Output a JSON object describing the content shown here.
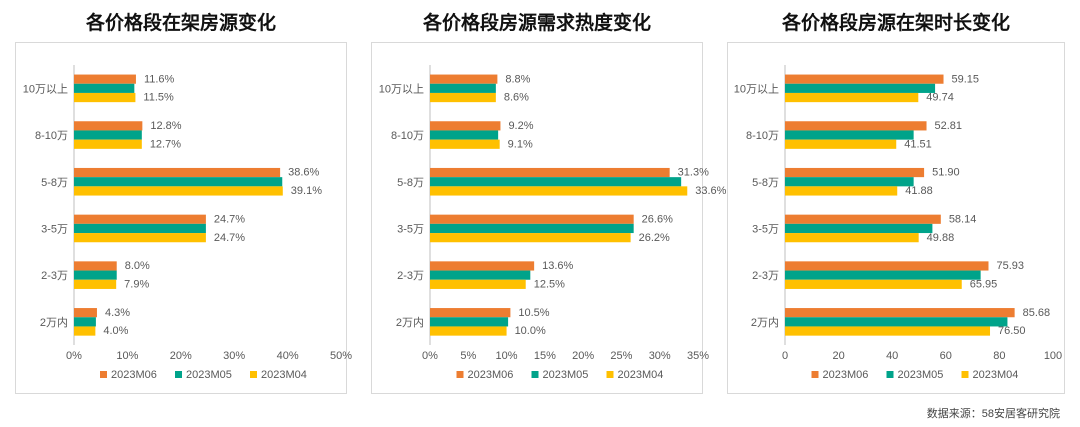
{
  "colors": {
    "2023M06": "#ED7D31",
    "2023M05": "#00A38A",
    "2023M04": "#FFC000"
  },
  "source": "数据来源：58安居客研究院",
  "chart_data": [
    {
      "type": "bar",
      "orientation": "horizontal",
      "title": "各价格段在架房源变化",
      "categories": [
        "10万以上",
        "8-10万",
        "5-8万",
        "3-5万",
        "2-3万",
        "2万内"
      ],
      "xlim": [
        0,
        50
      ],
      "ticks": [
        "0%",
        "10%",
        "20%",
        "30%",
        "40%",
        "50%"
      ],
      "grid": false,
      "legend": "bottom",
      "series": [
        {
          "name": "2023M06",
          "values": [
            11.6,
            12.8,
            38.6,
            24.7,
            8.0,
            4.3
          ],
          "labels": [
            "11.6%",
            "12.8%",
            "38.6%",
            "24.7%",
            "8.0%",
            "4.3%"
          ]
        },
        {
          "name": "2023M05",
          "values": [
            11.3,
            12.7,
            39.0,
            24.7,
            8.0,
            4.1
          ],
          "labels": []
        },
        {
          "name": "2023M04",
          "values": [
            11.5,
            12.7,
            39.1,
            24.7,
            7.9,
            4.0
          ],
          "labels": [
            "11.5%",
            "12.7%",
            "39.1%",
            "24.7%",
            "7.9%",
            "4.0%"
          ]
        }
      ]
    },
    {
      "type": "bar",
      "orientation": "horizontal",
      "title": "各价格段房源需求热度变化",
      "categories": [
        "10万以上",
        "8-10万",
        "5-8万",
        "3-5万",
        "2-3万",
        "2万内"
      ],
      "xlim": [
        0,
        35
      ],
      "ticks": [
        "0%",
        "5%",
        "10%",
        "15%",
        "20%",
        "25%",
        "30%",
        "35%"
      ],
      "grid": false,
      "legend": "bottom",
      "series": [
        {
          "name": "2023M06",
          "values": [
            8.8,
            9.2,
            31.3,
            26.6,
            13.6,
            10.5
          ],
          "labels": [
            "8.8%",
            "9.2%",
            "31.3%",
            "26.6%",
            "13.6%",
            "10.5%"
          ]
        },
        {
          "name": "2023M05",
          "values": [
            8.6,
            8.9,
            32.8,
            26.6,
            13.1,
            10.2
          ],
          "labels": []
        },
        {
          "name": "2023M04",
          "values": [
            8.6,
            9.1,
            33.6,
            26.2,
            12.5,
            10.0
          ],
          "labels": [
            "8.6%",
            "9.1%",
            "33.6%",
            "26.2%",
            "12.5%",
            "10.0%"
          ]
        }
      ]
    },
    {
      "type": "bar",
      "orientation": "horizontal",
      "title": "各价格段房源在架时长变化",
      "categories": [
        "10万以上",
        "8-10万",
        "5-8万",
        "3-5万",
        "2-3万",
        "2万内"
      ],
      "xlim": [
        0,
        100
      ],
      "ticks": [
        "0",
        "20",
        "40",
        "60",
        "80",
        "100"
      ],
      "grid": false,
      "legend": "bottom",
      "series": [
        {
          "name": "2023M06",
          "values": [
            59.15,
            52.81,
            51.9,
            58.14,
            75.93,
            85.68
          ],
          "labels": [
            "59.15",
            "52.81",
            "51.90",
            "58.14",
            "75.93",
            "85.68"
          ]
        },
        {
          "name": "2023M05",
          "values": [
            56.0,
            48.0,
            48.0,
            55.0,
            73.0,
            83.0
          ],
          "labels": []
        },
        {
          "name": "2023M04",
          "values": [
            49.74,
            41.51,
            41.88,
            49.88,
            65.95,
            76.5
          ],
          "labels": [
            "49.74",
            "41.51",
            "41.88",
            "49.88",
            "65.95",
            "76.50"
          ]
        }
      ]
    }
  ]
}
